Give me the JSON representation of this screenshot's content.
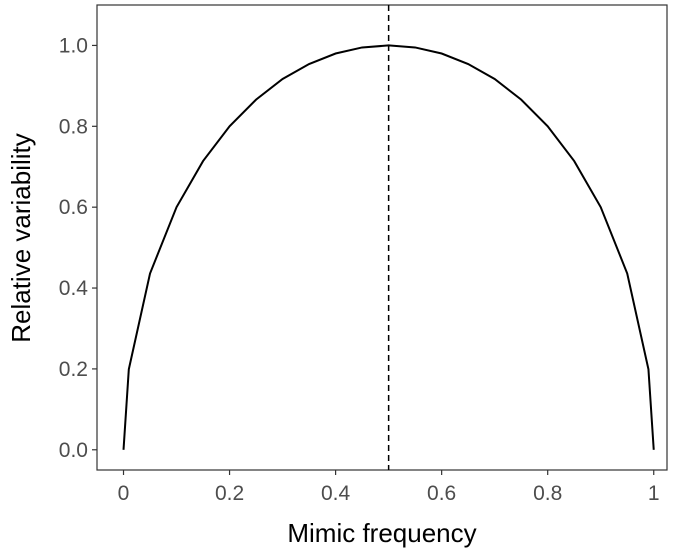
{
  "chart_data": {
    "type": "line",
    "xlabel": "Mimic frequency",
    "ylabel": "Relative variability",
    "x": [
      0,
      0.01,
      0.05,
      0.1,
      0.15,
      0.2,
      0.25,
      0.3,
      0.35,
      0.4,
      0.45,
      0.5,
      0.55,
      0.6,
      0.65,
      0.7,
      0.75,
      0.8,
      0.85,
      0.9,
      0.95,
      0.99,
      1
    ],
    "series": [
      {
        "color": "#000000",
        "values": [
          0,
          0.199,
          0.436,
          0.6,
          0.714,
          0.8,
          0.866,
          0.917,
          0.954,
          0.98,
          0.995,
          1,
          0.995,
          0.98,
          0.954,
          0.917,
          0.866,
          0.8,
          0.714,
          0.6,
          0.436,
          0.199,
          0
        ]
      }
    ],
    "vline": 0.5,
    "xlim": [
      -0.05,
      1.025
    ],
    "ylim": [
      -0.05,
      1.1
    ],
    "xticks": [
      0,
      0.2,
      0.4,
      0.6,
      0.8,
      1
    ],
    "yticks": [
      {
        "value": 0,
        "label": "0.0"
      },
      0.2,
      0.4,
      0.6,
      0.8,
      {
        "value": 1,
        "label": "1.0"
      }
    ]
  }
}
